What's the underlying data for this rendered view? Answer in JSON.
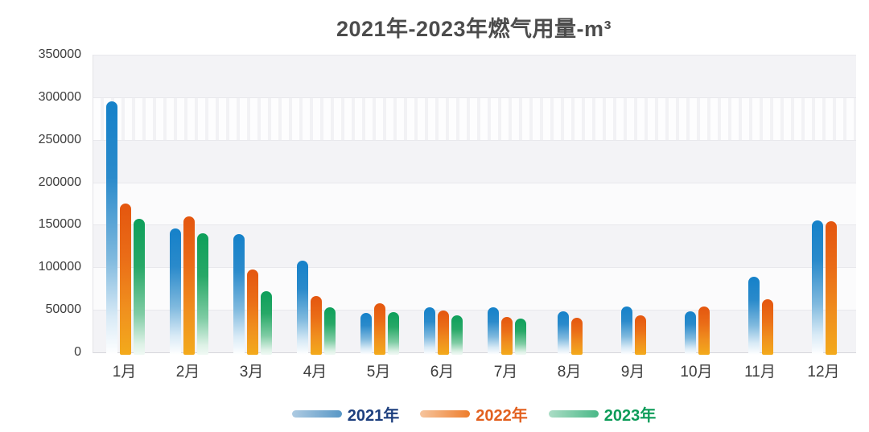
{
  "title": "2021年-2023年燃气用量-m³",
  "chart_data": {
    "type": "bar",
    "title": "2021年-2023年燃气用量-m³",
    "categories": [
      "1月",
      "2月",
      "3月",
      "4月",
      "5月",
      "6月",
      "7月",
      "8月",
      "9月",
      "10月",
      "11月",
      "12月"
    ],
    "series": [
      {
        "name": "2021年",
        "color": "#1a80c6",
        "values": [
          295000,
          146000,
          139000,
          108000,
          46000,
          53000,
          53000,
          48000,
          54000,
          48000,
          89000,
          155000
        ]
      },
      {
        "name": "2022年",
        "color": "#e8611a",
        "values": [
          175000,
          160000,
          97000,
          66000,
          58000,
          49000,
          42000,
          41000,
          44000,
          54000,
          62000,
          154000
        ]
      },
      {
        "name": "2023年",
        "color": "#12a05c",
        "values": [
          157000,
          140000,
          72000,
          53000,
          47000,
          44000,
          40000,
          null,
          null,
          null,
          null,
          null
        ]
      }
    ],
    "ylim": [
      0,
      350000
    ],
    "ytick_step": 50000,
    "yticks": [
      "350000",
      "300000",
      "250000",
      "200000",
      "150000",
      "100000",
      "50000",
      "0"
    ],
    "xlabel": "",
    "ylabel": "",
    "grid": true,
    "legend_position": "bottom"
  },
  "legend": {
    "items": [
      {
        "label": "2021年",
        "text_color": "#1d3f7e",
        "swatch_from": "#aecbe2",
        "swatch_to": "#5897c6"
      },
      {
        "label": "2022年",
        "text_color": "#e2601f",
        "swatch_from": "#f6c59e",
        "swatch_to": "#ee7d2c"
      },
      {
        "label": "2023年",
        "text_color": "#0d9c59",
        "swatch_from": "#abddc6",
        "swatch_to": "#4ab887"
      }
    ]
  },
  "colors": {
    "title_text": "#4c4c4c",
    "axis_text": "#3d3d3d",
    "bar_blue_top": "#1581c9",
    "bar_blue_bottom": "#ffffff",
    "bar_orange_top": "#e4560f",
    "bar_orange_bottom": "#f3aa1c",
    "bar_green_top": "#0d9f5a",
    "bar_green_bottom": "#f0f9f4"
  }
}
